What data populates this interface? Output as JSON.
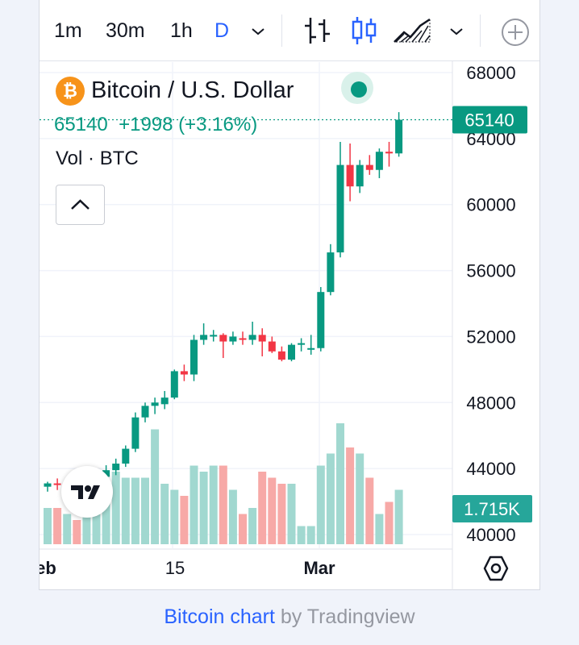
{
  "toolbar": {
    "timeframes": [
      "1m",
      "30m",
      "1h",
      "D"
    ],
    "active_timeframe": "D",
    "chart_type_icons": [
      "bars-icon",
      "candles-icon",
      "area-icon"
    ]
  },
  "legend": {
    "symbol": "Bitcoin / U.S. Dollar",
    "values_text": "65140  +1998 (+3.16%)",
    "volume_label": "Vol · BTC"
  },
  "price_scale": {
    "current_price_label": "65140",
    "volume_label": "1.715K"
  },
  "time_axis": {
    "labels": [
      "eb",
      "15",
      "Mar"
    ]
  },
  "attribution": {
    "link_text": "Bitcoin chart",
    "suffix": " by Tradingview"
  },
  "colors": {
    "up": "#089981",
    "down": "#f23645",
    "vol_up": "#a1d8d0",
    "vol_down": "#f7a9a7",
    "accent": "#2962ff"
  },
  "chart_data": {
    "type": "candlestick",
    "y_ticks": [
      40000,
      44000,
      48000,
      52000,
      56000,
      60000,
      64000,
      68000
    ],
    "ylim": [
      39500,
      68800
    ],
    "last_price": 65140,
    "change": 1998,
    "change_pct": 3.16,
    "grid": true,
    "candles": [
      {
        "o": 42900,
        "h": 43200,
        "l": 42600,
        "c": 43100
      },
      {
        "o": 43100,
        "h": 43400,
        "l": 42700,
        "c": 43050
      },
      {
        "o": 43050,
        "h": 43300,
        "l": 42800,
        "c": 43200
      },
      {
        "o": 43200,
        "h": 43300,
        "l": 42900,
        "c": 43000
      },
      {
        "o": 43000,
        "h": 43600,
        "l": 42800,
        "c": 43400
      },
      {
        "o": 43400,
        "h": 43700,
        "l": 43000,
        "c": 43500
      },
      {
        "o": 43500,
        "h": 44200,
        "l": 43300,
        "c": 43900
      },
      {
        "o": 43900,
        "h": 44600,
        "l": 43600,
        "c": 44300
      },
      {
        "o": 44300,
        "h": 45400,
        "l": 44100,
        "c": 45200
      },
      {
        "o": 45200,
        "h": 47400,
        "l": 45000,
        "c": 47100
      },
      {
        "o": 47100,
        "h": 48000,
        "l": 46800,
        "c": 47800
      },
      {
        "o": 47800,
        "h": 48300,
        "l": 47300,
        "c": 48000
      },
      {
        "o": 47900,
        "h": 48700,
        "l": 47600,
        "c": 48300
      },
      {
        "o": 48300,
        "h": 50000,
        "l": 48200,
        "c": 49900
      },
      {
        "o": 49900,
        "h": 50300,
        "l": 49300,
        "c": 49700
      },
      {
        "o": 49700,
        "h": 52100,
        "l": 49300,
        "c": 51800
      },
      {
        "o": 51800,
        "h": 52800,
        "l": 51500,
        "c": 52100
      },
      {
        "o": 52000,
        "h": 52400,
        "l": 51700,
        "c": 52100
      },
      {
        "o": 52100,
        "h": 52200,
        "l": 50700,
        "c": 51700
      },
      {
        "o": 51700,
        "h": 52300,
        "l": 51500,
        "c": 52000
      },
      {
        "o": 51900,
        "h": 52300,
        "l": 51500,
        "c": 51800
      },
      {
        "o": 51800,
        "h": 52900,
        "l": 51500,
        "c": 52100
      },
      {
        "o": 52100,
        "h": 52500,
        "l": 50800,
        "c": 51700
      },
      {
        "o": 51700,
        "h": 52000,
        "l": 51000,
        "c": 51100
      },
      {
        "o": 51100,
        "h": 51400,
        "l": 50500,
        "c": 50600
      },
      {
        "o": 50600,
        "h": 51600,
        "l": 50500,
        "c": 51500
      },
      {
        "o": 51500,
        "h": 51900,
        "l": 51100,
        "c": 51600
      },
      {
        "o": 51200,
        "h": 52100,
        "l": 50900,
        "c": 51300
      },
      {
        "o": 51300,
        "h": 55000,
        "l": 51100,
        "c": 54700
      },
      {
        "o": 54700,
        "h": 57600,
        "l": 54500,
        "c": 57100
      },
      {
        "o": 57100,
        "h": 63800,
        "l": 56800,
        "c": 62400
      },
      {
        "o": 62400,
        "h": 63700,
        "l": 60200,
        "c": 61100
      },
      {
        "o": 61100,
        "h": 62700,
        "l": 60700,
        "c": 62400
      },
      {
        "o": 62400,
        "h": 63000,
        "l": 61800,
        "c": 62100
      },
      {
        "o": 62100,
        "h": 63400,
        "l": 61600,
        "c": 63200
      },
      {
        "o": 63200,
        "h": 63800,
        "l": 62300,
        "c": 63100
      },
      {
        "o": 63100,
        "h": 65600,
        "l": 62900,
        "c": 65140
      }
    ],
    "volume_relative": [
      0.3,
      0.3,
      0.25,
      0.2,
      0.25,
      0.4,
      0.5,
      0.6,
      0.55,
      0.55,
      0.55,
      0.95,
      0.5,
      0.45,
      0.4,
      0.65,
      0.6,
      0.65,
      0.65,
      0.45,
      0.25,
      0.3,
      0.6,
      0.55,
      0.5,
      0.5,
      0.15,
      0.15,
      0.65,
      0.75,
      1.0,
      0.8,
      0.75,
      0.55,
      0.25,
      0.35,
      0.45
    ],
    "volume_last": "1.715K",
    "x_labels": [
      "eb",
      "15",
      "Mar"
    ]
  }
}
